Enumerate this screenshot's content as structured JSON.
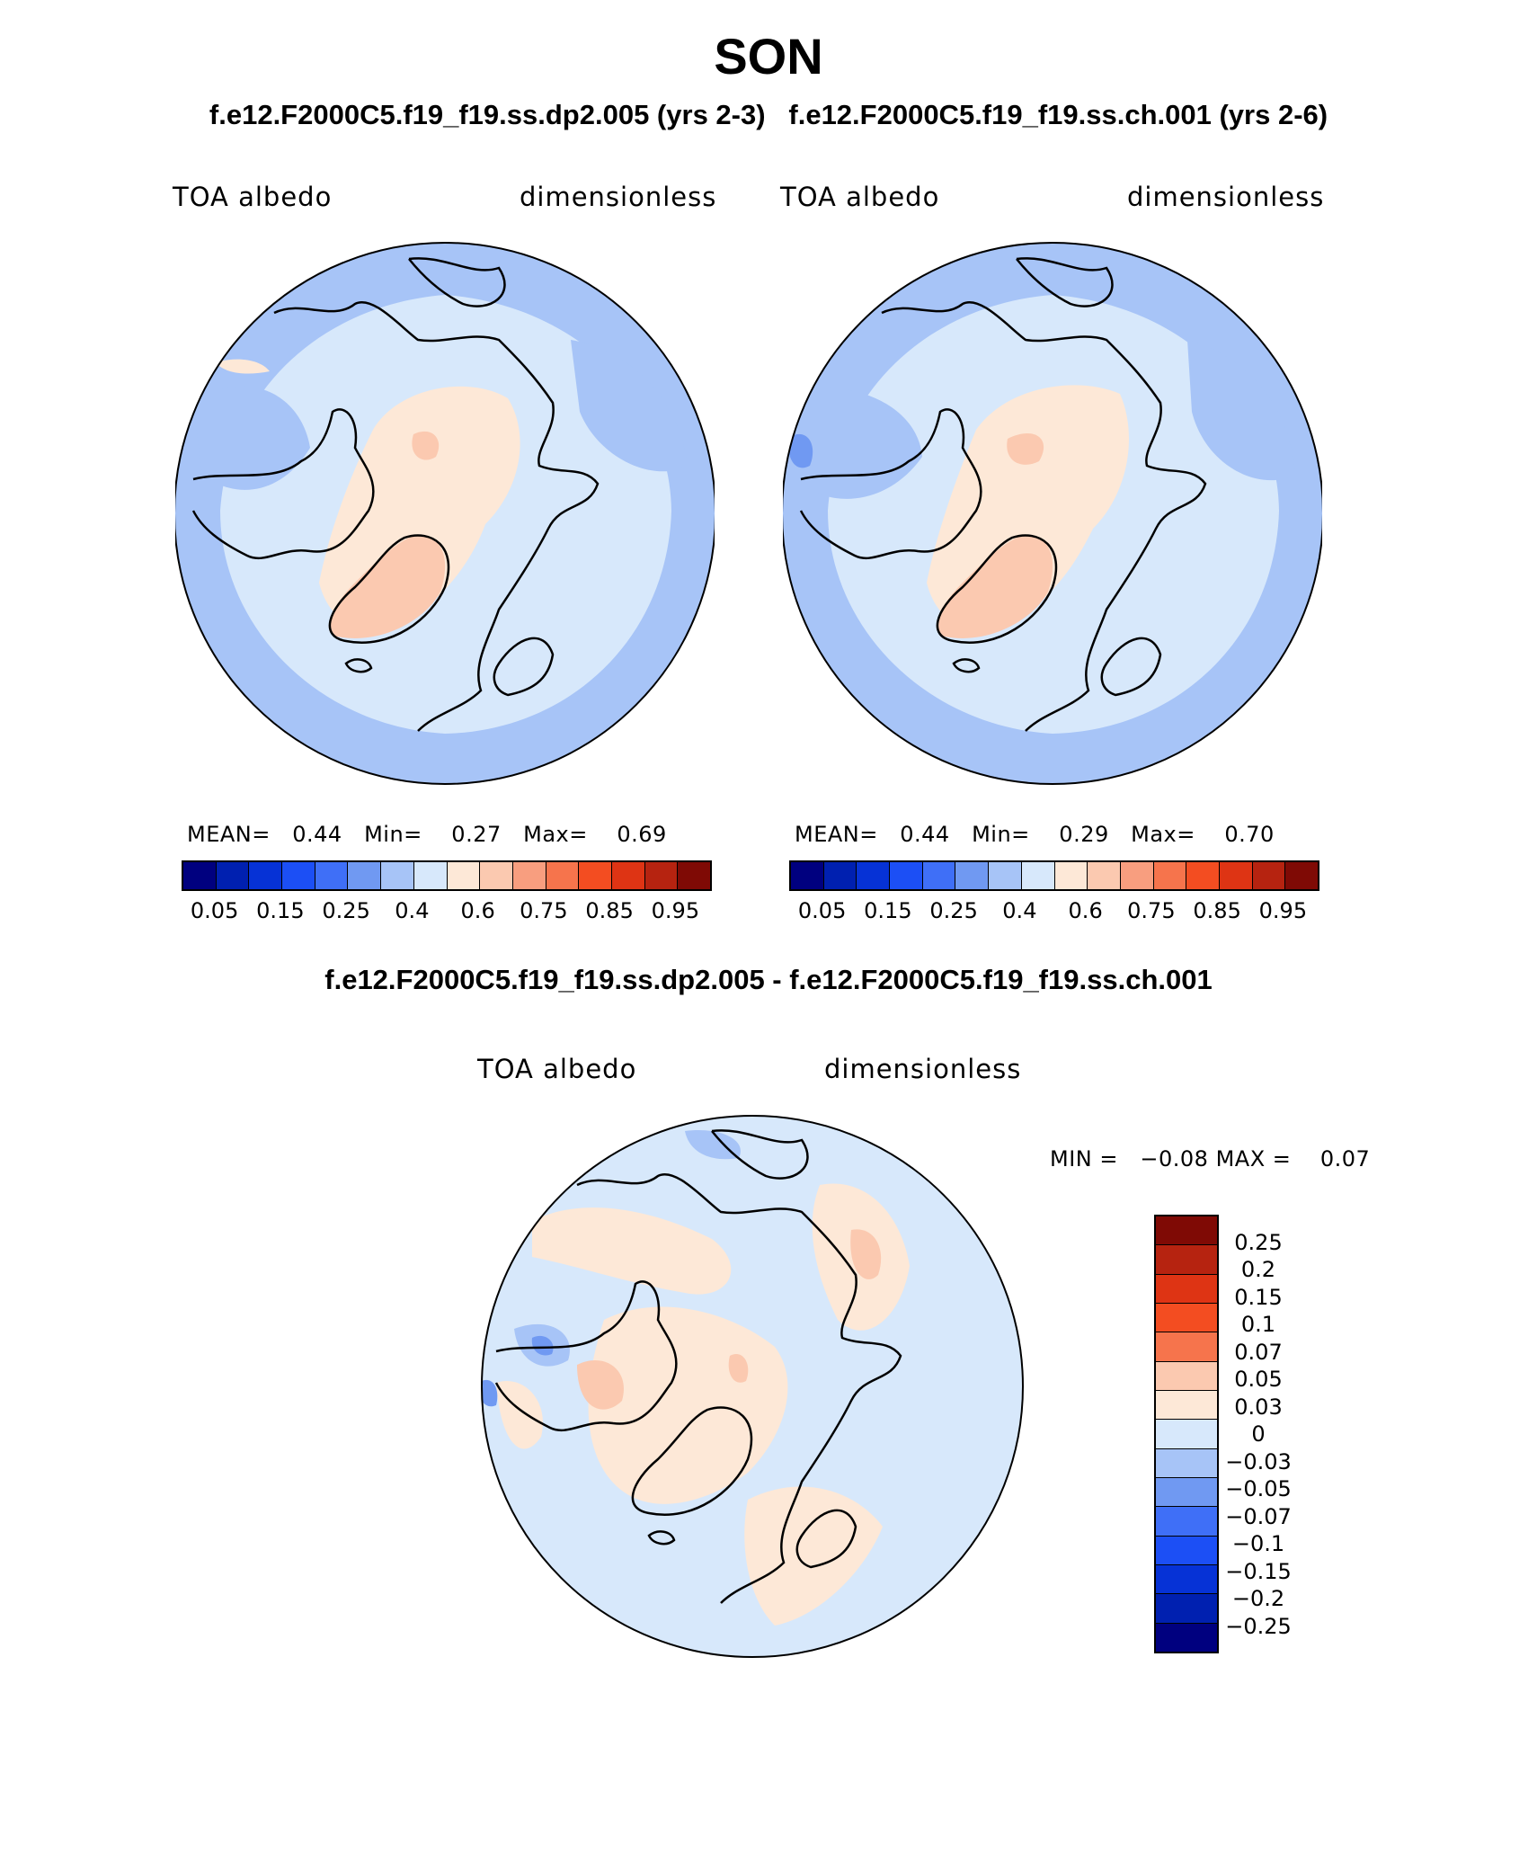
{
  "title": "SON",
  "subtitle_left": "f.e12.F2000C5.f19_f19.ss.dp2.005 (yrs 2-3)",
  "subtitle_right": "f.e12.F2000C5.f19_f19.ss.ch.001 (yrs 2-6)",
  "diff_title": "f.e12.F2000C5.f19_f19.ss.dp2.005 - f.e12.F2000C5.f19_f19.ss.ch.001",
  "panels": [
    {
      "variable": "TOA albedo",
      "units": "dimensionless",
      "mean_label": "MEAN=",
      "mean": "0.44",
      "min_label": "Min=",
      "min": "0.27",
      "max_label": "Max=",
      "max": "0.69"
    },
    {
      "variable": "TOA albedo",
      "units": "dimensionless",
      "mean_label": "MEAN=",
      "mean": "0.44",
      "min_label": "Min=",
      "min": "0.29",
      "max_label": "Max=",
      "max": "0.70"
    }
  ],
  "diff_panel": {
    "variable": "TOA albedo",
    "units": "dimensionless",
    "min_label": "MIN =",
    "min": "−0.08",
    "max_label": "MAX =",
    "max": "0.07"
  },
  "colors": {
    "abs_colorbar": [
      "#00007f",
      "#0020b0",
      "#0632d6",
      "#1c4ff5",
      "#3f6ff7",
      "#7099f2",
      "#a7c4f7",
      "#d7e8fb",
      "#fde8d7",
      "#fbc9b0",
      "#f89e7f",
      "#f6744c",
      "#f34d21",
      "#de3414",
      "#b62310",
      "#7f0a05"
    ],
    "diff_colorbar": [
      "#7f0a05",
      "#b62310",
      "#de3414",
      "#f34d21",
      "#f6744c",
      "#fbc9b0",
      "#fde8d7",
      "#d7e8fb",
      "#a7c4f7",
      "#7099f2",
      "#3f6ff7",
      "#1c4ff5",
      "#0632d6",
      "#0020b0",
      "#00007f"
    ],
    "map_light_blue": "#d7e8fb",
    "map_mid_blue": "#a7c4f7",
    "map_peach": "#fde8d7",
    "map_salmon": "#fbc9b0",
    "map_orange": "#f89e7f"
  },
  "abs_colorbar_ticks": [
    "0.05",
    "0.15",
    "0.25",
    "0.4",
    "0.6",
    "0.75",
    "0.85",
    "0.95"
  ],
  "diff_colorbar_ticks": [
    "0.25",
    "0.2",
    "0.15",
    "0.1",
    "0.07",
    "0.05",
    "0.03",
    "0",
    "−0.03",
    "−0.05",
    "−0.07",
    "−0.1",
    "−0.15",
    "−0.2",
    "−0.25"
  ]
}
